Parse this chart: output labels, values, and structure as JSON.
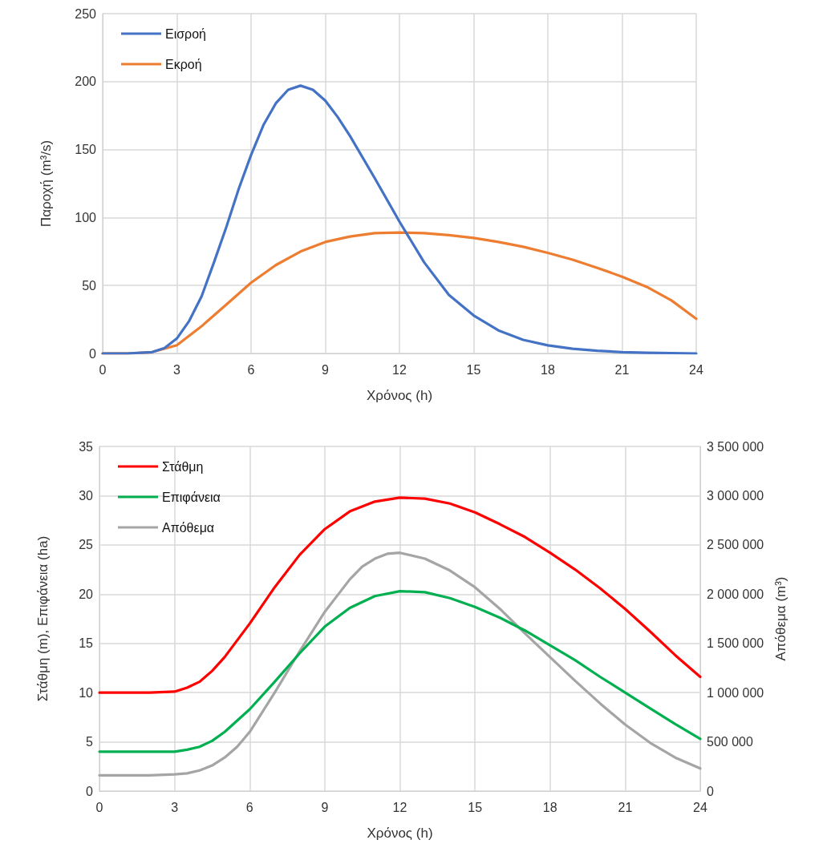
{
  "chart_data": [
    {
      "type": "line",
      "xlabel": "Χρόνος (h)",
      "ylabel": "Παροχή (m³/s)",
      "xlim": [
        0,
        24
      ],
      "xticks": [
        0,
        3,
        6,
        9,
        12,
        15,
        18,
        21,
        24
      ],
      "ylim": [
        0,
        250
      ],
      "yticks": [
        0,
        50,
        100,
        150,
        200,
        250
      ],
      "grid": true,
      "legend": "top left",
      "marker": "none",
      "line_style": "solid",
      "series": [
        {
          "name": "Εισροή",
          "color": "#4472c4",
          "x": [
            0,
            1,
            2,
            2.5,
            3,
            3.5,
            4,
            4.5,
            5,
            5.5,
            6,
            6.5,
            7,
            7.5,
            8,
            8.5,
            9,
            9.5,
            10,
            11,
            12,
            13,
            14,
            15,
            16,
            17,
            18,
            19,
            20,
            21,
            22,
            23,
            24
          ],
          "values": [
            0,
            0,
            1,
            4,
            11,
            24,
            42,
            67,
            93,
            121,
            146,
            168,
            184,
            194,
            197,
            194,
            186,
            174,
            160,
            129,
            97,
            67,
            43,
            28,
            17,
            10,
            6,
            3.5,
            2,
            1,
            0.5,
            0.3,
            0
          ]
        },
        {
          "name": "Εκροή",
          "color": "#ed7d31",
          "x": [
            0,
            1,
            2,
            3,
            4,
            5,
            6,
            7,
            8,
            9,
            10,
            11,
            12,
            13,
            14,
            15,
            16,
            17,
            18,
            19,
            20,
            21,
            22,
            23,
            24
          ],
          "values": [
            0,
            0,
            1,
            6,
            20,
            36,
            52,
            65,
            75,
            82,
            86,
            88.5,
            89,
            88.5,
            87,
            85,
            82,
            78.5,
            74,
            69,
            63,
            56.5,
            49,
            39,
            25.5
          ]
        }
      ]
    },
    {
      "type": "line",
      "xlabel": "Χρόνος (h)",
      "ylabel": "Στάθμη (m), Επιφάνεια (ha)",
      "y2label": "Απόθεμα (m³)",
      "xlim": [
        0,
        24
      ],
      "xticks": [
        0,
        3,
        6,
        9,
        12,
        15,
        18,
        21,
        24
      ],
      "ylim": [
        0,
        35
      ],
      "yticks": [
        0,
        5,
        10,
        15,
        20,
        25,
        30,
        35
      ],
      "y2lim": [
        0,
        3500000
      ],
      "y2ticks": [
        0,
        {
          "value": 500000,
          "label": "500 000"
        },
        {
          "value": 1000000,
          "label": "1 000 000"
        },
        {
          "value": 1500000,
          "label": "1 500 000"
        },
        {
          "value": 2000000,
          "label": "2 000 000"
        },
        {
          "value": 2500000,
          "label": "2 500 000"
        },
        {
          "value": 3000000,
          "label": "3 000 000"
        },
        {
          "value": 3500000,
          "label": "3 500 000"
        }
      ],
      "grid": true,
      "legend": "top left",
      "marker": "none",
      "line_style": "solid",
      "series": [
        {
          "name": "Στάθμη",
          "color": "#ff0000",
          "x": [
            0,
            1,
            2,
            3,
            3.5,
            4,
            4.5,
            5,
            6,
            7,
            8,
            9,
            10,
            11,
            12,
            13,
            14,
            15,
            16,
            17,
            18,
            19,
            20,
            21,
            22,
            23,
            24
          ],
          "values": [
            10,
            10,
            10,
            10.1,
            10.5,
            11.1,
            12.2,
            13.6,
            17,
            20.7,
            24,
            26.6,
            28.4,
            29.4,
            29.8,
            29.7,
            29.2,
            28.3,
            27.1,
            25.8,
            24.2,
            22.5,
            20.6,
            18.5,
            16.2,
            13.8,
            11.6
          ]
        },
        {
          "name": "Επιφάνεια",
          "color": "#00b050",
          "x": [
            0,
            1,
            2,
            3,
            3.5,
            4,
            4.5,
            5,
            6,
            7,
            8,
            9,
            10,
            11,
            12,
            13,
            14,
            15,
            16,
            17,
            18,
            19,
            20,
            21,
            22,
            23,
            24
          ],
          "values": [
            4,
            4,
            4,
            4,
            4.2,
            4.5,
            5.1,
            6,
            8.3,
            11.1,
            14,
            16.7,
            18.6,
            19.8,
            20.3,
            20.2,
            19.6,
            18.7,
            17.6,
            16.3,
            14.8,
            13.3,
            11.6,
            10,
            8.4,
            6.8,
            5.3
          ]
        },
        {
          "name": "Απόθεμα",
          "color": "#a5a5a5",
          "axis": "y2",
          "x": [
            0,
            1,
            2,
            3,
            3.5,
            4,
            4.5,
            5,
            5.5,
            6,
            7,
            8,
            9,
            10,
            10.5,
            11,
            11.5,
            12,
            13,
            14,
            15,
            16,
            17,
            18,
            19,
            20,
            21,
            22,
            23,
            24
          ],
          "values": [
            160000,
            160000,
            160000,
            170000,
            180000,
            210000,
            260000,
            340000,
            450000,
            600000,
            1000000,
            1420000,
            1820000,
            2150000,
            2280000,
            2360000,
            2410000,
            2420000,
            2360000,
            2240000,
            2070000,
            1850000,
            1600000,
            1360000,
            1120000,
            890000,
            675000,
            490000,
            340000,
            230000
          ]
        }
      ]
    }
  ]
}
